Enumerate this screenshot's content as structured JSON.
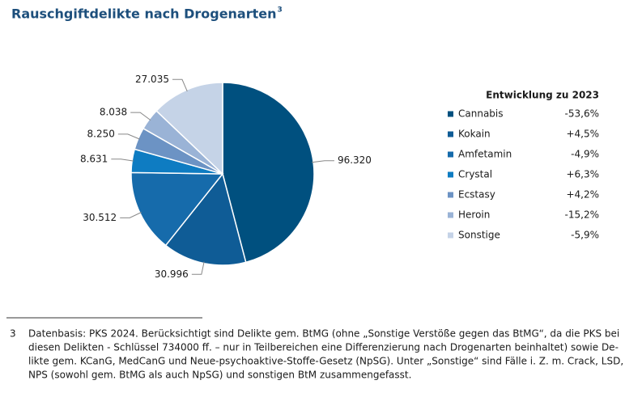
{
  "chart_data": {
    "type": "pie",
    "title": "Rauschgiftdelikte nach Drogenarten",
    "title_footnote_mark": "3",
    "categories": [
      "Cannabis",
      "Kokain",
      "Amfetamin",
      "Crystal",
      "Ecstasy",
      "Heroin",
      "Sonstige"
    ],
    "values": [
      96320,
      30996,
      30512,
      8631,
      8250,
      8038,
      27035
    ],
    "value_labels": [
      "96.320",
      "30.996",
      "30.512",
      "8.631",
      "8.250",
      "8.038",
      "27.035"
    ],
    "colors": [
      "#00507f",
      "#0f5c96",
      "#166bab",
      "#0e7cc2",
      "#6c93c4",
      "#9ab3d6",
      "#c5d3e7"
    ],
    "legend_header": "Entwicklung zu 2023",
    "changes": [
      "-53,6%",
      "+4,5%",
      "-4,9%",
      "+6,3%",
      "+4,2%",
      "-15,2%",
      "-5,9%"
    ]
  },
  "footnote": {
    "mark": "3",
    "lines": [
      "Datenbasis: PKS 2024. Berücksichtigt sind Delikte gem. BtMG (ohne „Sonstige Verstöße gegen das BtMG“, da die PKS bei",
      "diesen Delikten - Schlüssel 734000 ff. – nur in Teilbereichen eine Differenzierung nach Drogenarten beinhaltet) sowie De-",
      "likte gem. KCanG, MedCanG und Neue-psychoaktive-Stoffe-Gesetz (NpSG). Unter „Sonstige“ sind Fälle i. Z. m. Crack, LSD,",
      "NPS (sowohl gem. BtMG als auch NpSG) und sonstigen BtM zusammengefasst."
    ]
  }
}
